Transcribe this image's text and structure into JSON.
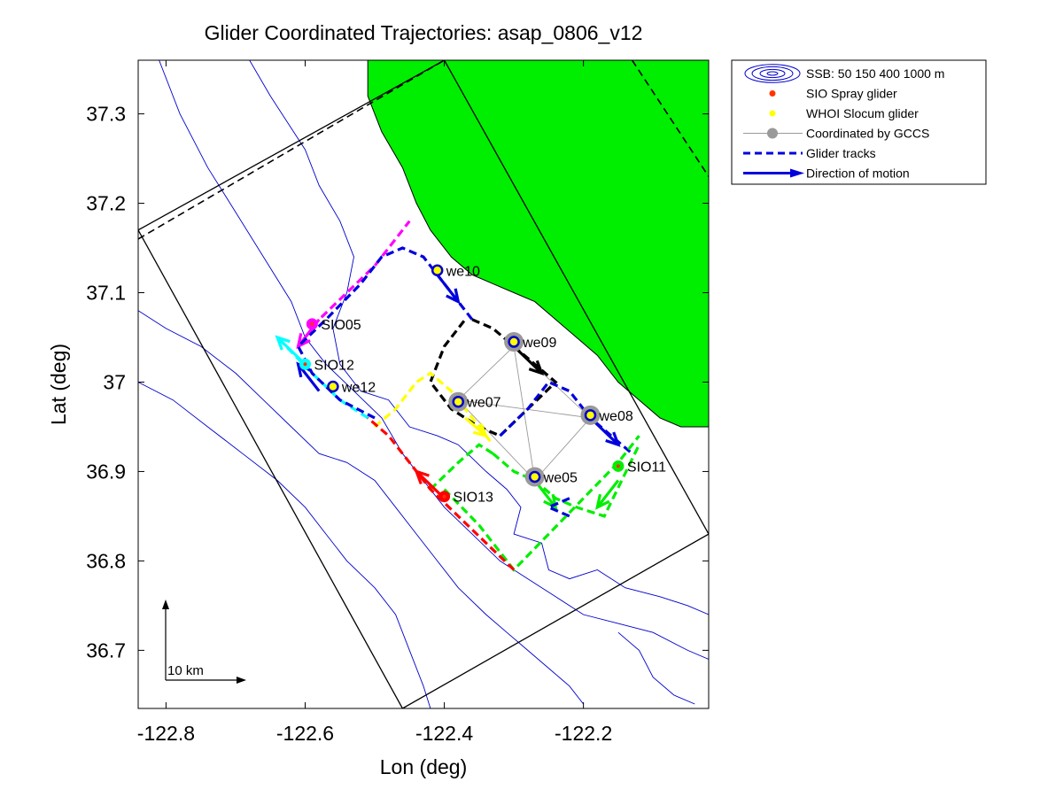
{
  "chart_data": {
    "type": "scatter",
    "title": "Glider Coordinated Trajectories: asap_0806_v12",
    "xlabel": "Lon (deg)",
    "ylabel": "Lat (deg)",
    "xlim": [
      -122.84,
      -122.02
    ],
    "ylim": [
      36.635,
      37.36
    ],
    "xticks": [
      -122.8,
      -122.6,
      -122.4,
      -122.2
    ],
    "xtick_labels": [
      "-122.8",
      "-122.6",
      "-122.4",
      "-122.2"
    ],
    "yticks": [
      36.7,
      36.8,
      36.9,
      37.0,
      37.1,
      37.2,
      37.3
    ],
    "ytick_labels": [
      "36.7",
      "36.8",
      "36.9",
      "37",
      "37.1",
      "37.2",
      "37.3"
    ],
    "grid": false,
    "legend_position": "outside-top-right",
    "scale_bar_label": "10 km",
    "colors": {
      "land": "#00ee00",
      "bathymetry": "#0000cc",
      "spray": "#ff3300",
      "slocum": "#ffff00",
      "coordinated": "#999999",
      "track": "#0000dd",
      "glider_ring": "#0000cc"
    },
    "legend": [
      {
        "label": "SSB: 50   150   400  1000 m",
        "symbol": "ellipses",
        "color": "#0000cc"
      },
      {
        "label": "SIO Spray glider",
        "symbol": "dot",
        "color": "#ff3300"
      },
      {
        "label": "WHOI Slocum glider",
        "symbol": "dot",
        "color": "#ffff00"
      },
      {
        "label": "Coordinated by GCCS",
        "symbol": "grey-line-dot",
        "color": "#999999"
      },
      {
        "label": "Glider tracks",
        "symbol": "dashed-line",
        "color": "#0000dd"
      },
      {
        "label": "Direction of motion",
        "symbol": "arrow",
        "color": "#0000dd"
      }
    ],
    "land": [
      [
        -122.51,
        37.36
      ],
      [
        -122.02,
        37.36
      ],
      [
        -122.02,
        36.95
      ],
      [
        -122.06,
        36.95
      ],
      [
        -122.09,
        36.96
      ],
      [
        -122.12,
        36.98
      ],
      [
        -122.15,
        37.0
      ],
      [
        -122.18,
        37.03
      ],
      [
        -122.21,
        37.05
      ],
      [
        -122.24,
        37.07
      ],
      [
        -122.27,
        37.09
      ],
      [
        -122.3,
        37.1
      ],
      [
        -122.33,
        37.11
      ],
      [
        -122.36,
        37.12
      ],
      [
        -122.39,
        37.14
      ],
      [
        -122.42,
        37.17
      ],
      [
        -122.44,
        37.2
      ],
      [
        -122.46,
        37.24
      ],
      [
        -122.49,
        37.28
      ],
      [
        -122.51,
        37.32
      ],
      [
        -122.51,
        37.36
      ]
    ],
    "box_outer": [
      [
        -122.84,
        37.17
      ],
      [
        -122.4,
        37.36
      ],
      [
        -122.02,
        36.83
      ],
      [
        -122.46,
        36.635
      ]
    ],
    "box_dashed": [
      [
        -122.84,
        37.16
      ],
      [
        -122.4,
        37.36
      ]
    ],
    "box_dashed_right": [
      [
        -122.13,
        37.36
      ],
      [
        -122.02,
        37.23
      ]
    ],
    "bathymetry": [
      [
        [
          -122.81,
          37.36
        ],
        [
          -122.78,
          37.3
        ],
        [
          -122.74,
          37.24
        ],
        [
          -122.7,
          37.19
        ],
        [
          -122.66,
          37.14
        ],
        [
          -122.62,
          37.09
        ],
        [
          -122.6,
          37.05
        ],
        [
          -122.57,
          37.02
        ],
        [
          -122.53,
          36.99
        ],
        [
          -122.49,
          36.96
        ],
        [
          -122.46,
          36.92
        ],
        [
          -122.43,
          36.89
        ],
        [
          -122.4,
          36.86
        ],
        [
          -122.36,
          36.83
        ],
        [
          -122.32,
          36.8
        ],
        [
          -122.28,
          36.78
        ],
        [
          -122.24,
          36.76
        ],
        [
          -122.2,
          36.74
        ],
        [
          -122.15,
          36.73
        ],
        [
          -122.1,
          36.72
        ],
        [
          -122.05,
          36.7
        ],
        [
          -122.02,
          36.69
        ]
      ],
      [
        [
          -122.68,
          37.36
        ],
        [
          -122.65,
          37.32
        ],
        [
          -122.6,
          37.26
        ],
        [
          -122.58,
          37.22
        ],
        [
          -122.55,
          37.18
        ],
        [
          -122.53,
          37.14
        ],
        [
          -122.54,
          37.1
        ],
        [
          -122.56,
          37.06
        ],
        [
          -122.55,
          37.02
        ],
        [
          -122.52,
          36.99
        ],
        [
          -122.48,
          36.98
        ],
        [
          -122.45,
          36.95
        ],
        [
          -122.41,
          36.94
        ],
        [
          -122.38,
          36.93
        ],
        [
          -122.34,
          36.9
        ],
        [
          -122.31,
          36.88
        ],
        [
          -122.29,
          36.86
        ],
        [
          -122.3,
          36.83
        ],
        [
          -122.26,
          36.82
        ],
        [
          -122.25,
          36.79
        ],
        [
          -122.22,
          36.78
        ],
        [
          -122.18,
          36.79
        ],
        [
          -122.14,
          36.77
        ],
        [
          -122.09,
          36.76
        ],
        [
          -122.05,
          36.75
        ],
        [
          -122.02,
          36.74
        ]
      ],
      [
        [
          -122.84,
          37.08
        ],
        [
          -122.8,
          37.06
        ],
        [
          -122.75,
          37.04
        ],
        [
          -122.7,
          37.01
        ],
        [
          -122.66,
          36.98
        ],
        [
          -122.62,
          36.95
        ],
        [
          -122.58,
          36.92
        ],
        [
          -122.54,
          36.91
        ],
        [
          -122.5,
          36.89
        ],
        [
          -122.47,
          36.86
        ],
        [
          -122.44,
          36.83
        ],
        [
          -122.41,
          36.8
        ],
        [
          -122.38,
          36.77
        ],
        [
          -122.34,
          36.74
        ],
        [
          -122.31,
          36.72
        ],
        [
          -122.28,
          36.7
        ],
        [
          -122.25,
          36.68
        ],
        [
          -122.22,
          36.66
        ],
        [
          -122.2,
          36.64
        ]
      ],
      [
        [
          -122.84,
          37.0
        ],
        [
          -122.79,
          36.98
        ],
        [
          -122.74,
          36.95
        ],
        [
          -122.69,
          36.92
        ],
        [
          -122.64,
          36.89
        ],
        [
          -122.6,
          36.86
        ],
        [
          -122.57,
          36.83
        ],
        [
          -122.54,
          36.8
        ],
        [
          -122.5,
          36.77
        ],
        [
          -122.47,
          36.74
        ],
        [
          -122.45,
          36.7
        ],
        [
          -122.43,
          36.66
        ],
        [
          -122.42,
          36.635
        ]
      ],
      [
        [
          -122.15,
          36.72
        ],
        [
          -122.12,
          36.7
        ],
        [
          -122.1,
          36.67
        ],
        [
          -122.07,
          36.65
        ],
        [
          -122.04,
          36.64
        ]
      ]
    ],
    "coordination_lines": [
      [
        [
          -122.3,
          37.04
        ],
        [
          -122.38,
          36.98
        ]
      ],
      [
        [
          -122.3,
          37.04
        ],
        [
          -122.19,
          36.96
        ]
      ],
      [
        [
          -122.38,
          36.98
        ],
        [
          -122.19,
          36.96
        ]
      ],
      [
        [
          -122.38,
          36.98
        ],
        [
          -122.27,
          36.89
        ]
      ],
      [
        [
          -122.19,
          36.96
        ],
        [
          -122.27,
          36.89
        ]
      ],
      [
        [
          -122.3,
          37.04
        ],
        [
          -122.27,
          36.89
        ]
      ]
    ],
    "series": [
      {
        "color": "#ff00ff",
        "track": [
          [
            -122.61,
            37.04
          ],
          [
            -122.58,
            37.07
          ],
          [
            -122.54,
            37.1
          ],
          [
            -122.5,
            37.13
          ],
          [
            -122.47,
            37.16
          ],
          [
            -122.45,
            37.18
          ]
        ],
        "arrows": [
          [
            [
              -122.58,
              37.07
            ],
            [
              -122.61,
              37.04
            ]
          ]
        ]
      },
      {
        "color": "#00ffff",
        "track": [
          [
            -122.51,
            36.96
          ],
          [
            -122.55,
            36.98
          ],
          [
            -122.59,
            37.01
          ],
          [
            -122.64,
            37.05
          ]
        ],
        "arrows": [
          [
            [
              -122.6,
              37.02
            ],
            [
              -122.64,
              37.05
            ]
          ]
        ]
      },
      {
        "color": "#0000dd",
        "track": [
          [
            -122.5,
            36.96
          ],
          [
            -122.55,
            36.98
          ],
          [
            -122.59,
            37.01
          ],
          [
            -122.61,
            37.04
          ],
          [
            -122.57,
            37.07
          ],
          [
            -122.52,
            37.11
          ],
          [
            -122.49,
            37.14
          ],
          [
            -122.46,
            37.15
          ],
          [
            -122.43,
            37.14
          ],
          [
            -122.41,
            37.12
          ],
          [
            -122.38,
            37.09
          ],
          [
            -122.36,
            37.07
          ]
        ],
        "arrows": [
          [
            [
              -122.41,
              37.12
            ],
            [
              -122.38,
              37.09
            ]
          ],
          [
            [
              -122.58,
              36.99
            ],
            [
              -122.61,
              37.02
            ]
          ]
        ]
      },
      {
        "color": "#000000",
        "track": [
          [
            -122.36,
            37.07
          ],
          [
            -122.33,
            37.06
          ],
          [
            -122.3,
            37.04
          ],
          [
            -122.27,
            37.02
          ],
          [
            -122.24,
            37.0
          ],
          [
            -122.32,
            36.94
          ],
          [
            -122.35,
            36.95
          ],
          [
            -122.39,
            36.97
          ],
          [
            -122.42,
            37.0
          ],
          [
            -122.4,
            37.04
          ],
          [
            -122.37,
            37.07
          ]
        ],
        "arrows": [
          [
            [
              -122.3,
              37.04
            ],
            [
              -122.26,
              37.01
            ]
          ]
        ]
      },
      {
        "color": "#ffff00",
        "track": [
          [
            -122.5,
            36.95
          ],
          [
            -122.47,
            36.97
          ],
          [
            -122.44,
            37.0
          ],
          [
            -122.42,
            37.01
          ],
          [
            -122.39,
            36.99
          ],
          [
            -122.36,
            36.96
          ],
          [
            -122.33,
            36.93
          ]
        ],
        "arrows": [
          [
            [
              -122.37,
              36.96
            ],
            [
              -122.34,
              36.94
            ]
          ]
        ]
      },
      {
        "color": "#0000dd",
        "track": [
          [
            -122.32,
            36.94
          ],
          [
            -122.28,
            36.97
          ],
          [
            -122.25,
            37.0
          ],
          [
            -122.22,
            36.99
          ],
          [
            -122.19,
            36.96
          ],
          [
            -122.16,
            36.94
          ],
          [
            -122.13,
            36.92
          ]
        ],
        "arrows": [
          [
            [
              -122.19,
              36.96
            ],
            [
              -122.15,
              36.93
            ]
          ]
        ]
      },
      {
        "color": "#00ee00",
        "track": [
          [
            -122.33,
            36.92
          ],
          [
            -122.3,
            36.9
          ],
          [
            -122.27,
            36.89
          ],
          [
            -122.24,
            36.87
          ],
          [
            -122.21,
            36.86
          ],
          [
            -122.17,
            36.85
          ],
          [
            -122.12,
            36.93
          ]
        ],
        "arrows": [
          [
            [
              -122.27,
              36.89
            ],
            [
              -122.24,
              36.86
            ]
          ],
          [
            [
              -122.15,
              36.89
            ],
            [
              -122.18,
              36.86
            ]
          ]
        ]
      },
      {
        "color": "#00ee00",
        "track": [
          [
            -122.42,
            36.88
          ],
          [
            -122.38,
            36.91
          ],
          [
            -122.35,
            36.93
          ],
          [
            -122.33,
            36.92
          ]
        ],
        "arrows": []
      },
      {
        "color": "#0000dd",
        "track": [
          [
            -122.22,
            36.87
          ],
          [
            -122.25,
            36.86
          ],
          [
            -122.22,
            36.85
          ]
        ],
        "arrows": []
      },
      {
        "color": "#00ee00",
        "track": [
          [
            -122.4,
            36.88
          ],
          [
            -122.35,
            36.84
          ],
          [
            -122.3,
            36.79
          ],
          [
            -122.25,
            36.83
          ],
          [
            -122.2,
            36.87
          ],
          [
            -122.15,
            36.91
          ],
          [
            -122.12,
            36.94
          ]
        ],
        "arrows": []
      },
      {
        "color": "#ff0000",
        "track": [
          [
            -122.3,
            36.79
          ],
          [
            -122.34,
            36.82
          ],
          [
            -122.38,
            36.85
          ],
          [
            -122.42,
            36.88
          ],
          [
            -122.45,
            36.91
          ],
          [
            -122.48,
            36.94
          ],
          [
            -122.51,
            36.96
          ]
        ],
        "arrows": [
          [
            [
              -122.4,
              36.87
            ],
            [
              -122.44,
              36.9
            ]
          ]
        ]
      }
    ],
    "gliders": [
      {
        "name": "we10",
        "lon": -122.41,
        "lat": 37.125,
        "type": "slocum",
        "coordinated": false,
        "label_side": "right"
      },
      {
        "name": "SIO05",
        "lon": -122.59,
        "lat": 37.065,
        "type": "spray-magenta",
        "coordinated": false,
        "label_side": "right"
      },
      {
        "name": "SIO12",
        "lon": -122.6,
        "lat": 37.02,
        "type": "spray-cyan",
        "coordinated": false,
        "label_side": "right"
      },
      {
        "name": "we12",
        "lon": -122.56,
        "lat": 36.995,
        "type": "slocum",
        "coordinated": false,
        "label_side": "right"
      },
      {
        "name": "we09",
        "lon": -122.3,
        "lat": 37.045,
        "type": "slocum",
        "coordinated": true,
        "label_side": "right"
      },
      {
        "name": "we07",
        "lon": -122.38,
        "lat": 36.978,
        "type": "slocum",
        "coordinated": true,
        "label_side": "right"
      },
      {
        "name": "we08",
        "lon": -122.19,
        "lat": 36.963,
        "type": "slocum",
        "coordinated": true,
        "label_side": "right"
      },
      {
        "name": "SIO11",
        "lon": -122.15,
        "lat": 36.906,
        "type": "spray-green",
        "coordinated": false,
        "label_side": "right"
      },
      {
        "name": "we05",
        "lon": -122.27,
        "lat": 36.894,
        "type": "slocum",
        "coordinated": true,
        "label_side": "right"
      },
      {
        "name": "SIO13",
        "lon": -122.4,
        "lat": 36.872,
        "type": "spray-red",
        "coordinated": false,
        "label_side": "right"
      }
    ]
  }
}
